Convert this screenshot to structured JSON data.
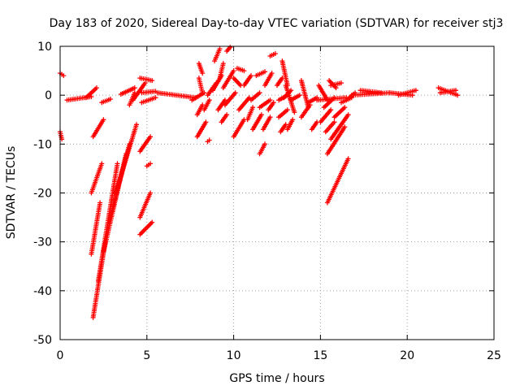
{
  "chart_data": {
    "type": "scatter",
    "title": "Day 183 of 2020, Sidereal Day-to-day VTEC variation (SDTVAR) for receiver stj3",
    "xlabel": "GPS time / hours",
    "ylabel": "SDTVAR / TECUs",
    "xlim": [
      0,
      25
    ],
    "ylim": [
      -50,
      10
    ],
    "xticks": [
      0,
      5,
      10,
      15,
      20,
      25
    ],
    "yticks": [
      -50,
      -40,
      -30,
      -20,
      -10,
      0,
      10
    ],
    "xtick_labels": [
      "0",
      "5",
      "10",
      "15",
      "20",
      "25"
    ],
    "ytick_labels": [
      "-50",
      "-40",
      "-30",
      "-20",
      "-10",
      "0",
      "10"
    ],
    "grid": true,
    "marker": "+",
    "color": "#ff0000",
    "segments": [
      {
        "x0": 0.0,
        "y0": 4.5,
        "x1": 0.2,
        "y1": 4.0
      },
      {
        "x0": 0.0,
        "y0": -7.5,
        "x1": 0.1,
        "y1": -9.0
      },
      {
        "x0": 0.4,
        "y0": -1.0,
        "x1": 1.8,
        "y1": -0.3
      },
      {
        "x0": 1.5,
        "y0": -0.5,
        "x1": 2.1,
        "y1": 1.5
      },
      {
        "x0": 1.9,
        "y0": -8.5,
        "x1": 2.5,
        "y1": -5.0
      },
      {
        "x0": 1.8,
        "y0": -20.0,
        "x1": 2.4,
        "y1": -14.0
      },
      {
        "x0": 1.8,
        "y0": -32.5,
        "x1": 2.3,
        "y1": -22.0
      },
      {
        "x0": 1.9,
        "y0": -45.5,
        "x1": 2.6,
        "y1": -30.0
      },
      {
        "x0": 2.2,
        "y0": -38.0,
        "x1": 3.3,
        "y1": -14.0
      },
      {
        "x0": 2.5,
        "y0": -32.0,
        "x1": 3.8,
        "y1": -12.0
      },
      {
        "x0": 2.8,
        "y0": -26.0,
        "x1": 4.0,
        "y1": -10.0
      },
      {
        "x0": 3.2,
        "y0": -20.0,
        "x1": 4.4,
        "y1": -6.0
      },
      {
        "x0": 2.4,
        "y0": -1.5,
        "x1": 2.9,
        "y1": -0.8
      },
      {
        "x0": 3.5,
        "y0": 0.2,
        "x1": 4.3,
        "y1": 1.5
      },
      {
        "x0": 4.0,
        "y0": -2.0,
        "x1": 4.3,
        "y1": 0.5
      },
      {
        "x0": 4.2,
        "y0": -1.0,
        "x1": 4.9,
        "y1": 2.5
      },
      {
        "x0": 4.7,
        "y0": 0.5,
        "x1": 5.5,
        "y1": 0.8
      },
      {
        "x0": 4.7,
        "y0": -1.5,
        "x1": 5.5,
        "y1": -0.5
      },
      {
        "x0": 4.6,
        "y0": 3.5,
        "x1": 5.3,
        "y1": 3.0
      },
      {
        "x0": 4.6,
        "y0": -11.5,
        "x1": 5.2,
        "y1": -8.5
      },
      {
        "x0": 4.6,
        "y0": -25.0,
        "x1": 5.2,
        "y1": -20.0
      },
      {
        "x0": 4.6,
        "y0": -28.5,
        "x1": 5.3,
        "y1": -26.0
      },
      {
        "x0": 5.0,
        "y0": -14.5,
        "x1": 5.2,
        "y1": -14.0
      },
      {
        "x0": 5.6,
        "y0": 0.5,
        "x1": 7.8,
        "y1": -0.5
      },
      {
        "x0": 7.6,
        "y0": -1.0,
        "x1": 8.3,
        "y1": 0.5
      },
      {
        "x0": 7.9,
        "y0": -8.5,
        "x1": 8.4,
        "y1": -5.5
      },
      {
        "x0": 7.9,
        "y0": -4.0,
        "x1": 8.2,
        "y1": -2.0
      },
      {
        "x0": 8.0,
        "y0": 6.5,
        "x1": 8.2,
        "y1": 4.5
      },
      {
        "x0": 8.0,
        "y0": 3.5,
        "x1": 8.2,
        "y1": 0.5
      },
      {
        "x0": 8.3,
        "y0": -3.0,
        "x1": 8.6,
        "y1": -1.0
      },
      {
        "x0": 8.5,
        "y0": -9.5,
        "x1": 8.6,
        "y1": -9.2
      },
      {
        "x0": 8.5,
        "y0": 0.0,
        "x1": 9.0,
        "y1": 2.5
      },
      {
        "x0": 8.8,
        "y0": 1.0,
        "x1": 9.3,
        "y1": 4.0
      },
      {
        "x0": 8.9,
        "y0": 7.0,
        "x1": 9.2,
        "y1": 9.5
      },
      {
        "x0": 9.2,
        "y0": 3.5,
        "x1": 9.4,
        "y1": 6.5
      },
      {
        "x0": 9.1,
        "y0": -3.0,
        "x1": 9.5,
        "y1": -1.0
      },
      {
        "x0": 9.5,
        "y0": -2.0,
        "x1": 10.1,
        "y1": 0.5
      },
      {
        "x0": 9.4,
        "y0": 1.5,
        "x1": 10.0,
        "y1": 5.0
      },
      {
        "x0": 9.6,
        "y0": 9.0,
        "x1": 9.8,
        "y1": 9.8
      },
      {
        "x0": 9.3,
        "y0": -5.5,
        "x1": 9.6,
        "y1": -4.0
      },
      {
        "x0": 10.0,
        "y0": 3.5,
        "x1": 10.4,
        "y1": 2.0
      },
      {
        "x0": 10.2,
        "y0": 5.5,
        "x1": 10.6,
        "y1": 5.0
      },
      {
        "x0": 10.0,
        "y0": -8.5,
        "x1": 10.6,
        "y1": -5.0
      },
      {
        "x0": 10.3,
        "y0": -3.0,
        "x1": 10.9,
        "y1": -0.5
      },
      {
        "x0": 10.6,
        "y0": 2.0,
        "x1": 11.0,
        "y1": 4.0
      },
      {
        "x0": 10.8,
        "y0": -5.0,
        "x1": 11.1,
        "y1": -2.5
      },
      {
        "x0": 11.1,
        "y0": -7.0,
        "x1": 11.6,
        "y1": -4.0
      },
      {
        "x0": 11.0,
        "y0": -1.0,
        "x1": 11.5,
        "y1": 0.5
      },
      {
        "x0": 11.3,
        "y0": 4.0,
        "x1": 11.8,
        "y1": 4.8
      },
      {
        "x0": 11.5,
        "y0": -12.0,
        "x1": 11.8,
        "y1": -10.0
      },
      {
        "x0": 11.5,
        "y0": -2.5,
        "x1": 12.1,
        "y1": -1.0
      },
      {
        "x0": 11.8,
        "y0": 2.0,
        "x1": 12.2,
        "y1": 4.5
      },
      {
        "x0": 11.7,
        "y0": -7.0,
        "x1": 12.1,
        "y1": -4.5
      },
      {
        "x0": 12.0,
        "y0": -3.0,
        "x1": 12.3,
        "y1": -1.5
      },
      {
        "x0": 12.1,
        "y0": 8.0,
        "x1": 12.4,
        "y1": 8.5
      },
      {
        "x0": 12.5,
        "y0": 2.0,
        "x1": 12.8,
        "y1": 3.5
      },
      {
        "x0": 12.6,
        "y0": -1.0,
        "x1": 13.1,
        "y1": 0.0
      },
      {
        "x0": 12.6,
        "y0": -4.5,
        "x1": 13.1,
        "y1": -3.0
      },
      {
        "x0": 12.8,
        "y0": 7.0,
        "x1": 13.1,
        "y1": 2.0
      },
      {
        "x0": 12.7,
        "y0": -7.5,
        "x1": 13.0,
        "y1": -6.0
      },
      {
        "x0": 12.9,
        "y0": -0.5,
        "x1": 13.3,
        "y1": 1.0
      },
      {
        "x0": 13.0,
        "y0": 2.0,
        "x1": 13.5,
        "y1": -3.5
      },
      {
        "x0": 13.1,
        "y0": -7.0,
        "x1": 13.4,
        "y1": -5.0
      },
      {
        "x0": 13.3,
        "y0": -1.0,
        "x1": 13.8,
        "y1": 0.0
      },
      {
        "x0": 13.9,
        "y0": 3.0,
        "x1": 14.3,
        "y1": -2.5
      },
      {
        "x0": 13.9,
        "y0": -4.5,
        "x1": 14.4,
        "y1": -2.0
      },
      {
        "x0": 14.3,
        "y0": -1.5,
        "x1": 14.8,
        "y1": -0.5
      },
      {
        "x0": 14.5,
        "y0": -7.0,
        "x1": 14.8,
        "y1": -5.5
      },
      {
        "x0": 14.8,
        "y0": -1.0,
        "x1": 16.5,
        "y1": -0.5
      },
      {
        "x0": 14.9,
        "y0": 2.0,
        "x1": 15.4,
        "y1": -1.0
      },
      {
        "x0": 15.2,
        "y0": -2.5,
        "x1": 15.8,
        "y1": -0.5
      },
      {
        "x0": 15.0,
        "y0": -5.5,
        "x1": 15.6,
        "y1": -3.0
      },
      {
        "x0": 15.3,
        "y0": -7.5,
        "x1": 15.8,
        "y1": -5.5
      },
      {
        "x0": 15.5,
        "y0": 3.0,
        "x1": 15.9,
        "y1": 1.5
      },
      {
        "x0": 15.6,
        "y0": 2.0,
        "x1": 16.2,
        "y1": 2.5
      },
      {
        "x0": 15.8,
        "y0": -4.5,
        "x1": 16.4,
        "y1": -2.5
      },
      {
        "x0": 15.4,
        "y0": -12.0,
        "x1": 16.4,
        "y1": -6.5
      },
      {
        "x0": 15.6,
        "y0": -9.0,
        "x1": 16.6,
        "y1": -4.0
      },
      {
        "x0": 15.4,
        "y0": -22.0,
        "x1": 16.6,
        "y1": -13.0
      },
      {
        "x0": 16.2,
        "y0": -1.5,
        "x1": 16.8,
        "y1": -0.5
      },
      {
        "x0": 16.5,
        "y0": -1.0,
        "x1": 17.0,
        "y1": 0.5
      },
      {
        "x0": 16.8,
        "y0": 0.0,
        "x1": 19.0,
        "y1": 0.5
      },
      {
        "x0": 17.3,
        "y0": 1.0,
        "x1": 18.5,
        "y1": 0.5
      },
      {
        "x0": 19.0,
        "y0": 0.5,
        "x1": 20.3,
        "y1": 0.0
      },
      {
        "x0": 19.5,
        "y0": 0.0,
        "x1": 20.5,
        "y1": 1.0
      },
      {
        "x0": 21.8,
        "y0": 1.5,
        "x1": 22.9,
        "y1": 0.0
      },
      {
        "x0": 21.9,
        "y0": 0.5,
        "x1": 22.8,
        "y1": 1.0
      }
    ]
  }
}
